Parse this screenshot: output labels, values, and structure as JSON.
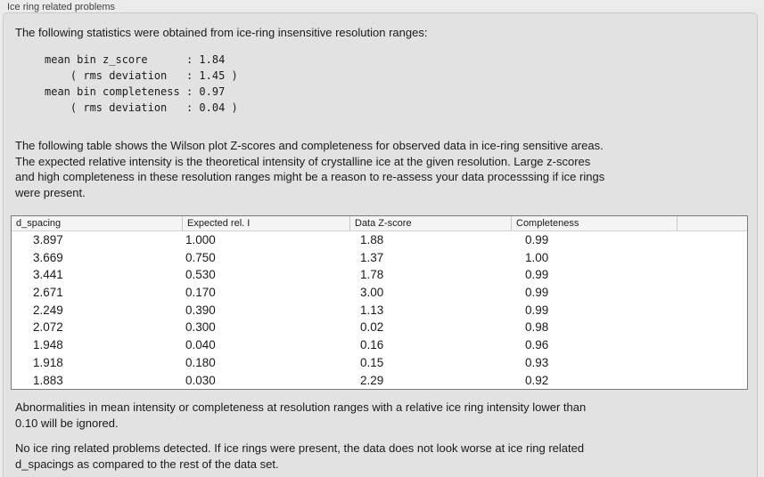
{
  "panel": {
    "title": "Ice ring related problems"
  },
  "stats": {
    "intro": "The following statistics were obtained from ice-ring insensitive resolution ranges:",
    "lines": [
      "mean bin z_score      : 1.84",
      "    ( rms deviation   : 1.45 )",
      "mean bin completeness : 0.97",
      "    ( rms deviation   : 0.04 )"
    ]
  },
  "table_intro": {
    "lines": [
      "The following table shows the Wilson plot Z-scores and completeness for observed data in ice-ring sensitive areas.",
      "The expected relative intensity is the theoretical intensity of crystalline ice at the given resolution. Large z-scores",
      "and high completeness in these resolution ranges might be a reason to re-assess your data processsing if ice rings",
      "were present."
    ]
  },
  "table": {
    "columns": [
      "d_spacing",
      "Expected rel. I",
      "Data Z-score",
      "Completeness",
      ""
    ],
    "rows": [
      [
        "3.897",
        "1.000",
        "1.88",
        "0.99"
      ],
      [
        "3.669",
        "0.750",
        "1.37",
        "1.00"
      ],
      [
        "3.441",
        "0.530",
        "1.78",
        "0.99"
      ],
      [
        "2.671",
        "0.170",
        "3.00",
        "0.99"
      ],
      [
        "2.249",
        "0.390",
        "1.13",
        "0.99"
      ],
      [
        "2.072",
        "0.300",
        "0.02",
        "0.98"
      ],
      [
        "1.948",
        "0.040",
        "0.16",
        "0.96"
      ],
      [
        "1.918",
        "0.180",
        "0.15",
        "0.93"
      ],
      [
        "1.883",
        "0.030",
        "2.29",
        "0.92"
      ]
    ]
  },
  "notes": {
    "ignore_lines": [
      "Abnormalities in mean intensity or completeness at resolution ranges with a relative ice ring intensity lower than",
      "0.10 will be ignored."
    ],
    "conclusion_lines": [
      "No ice ring related problems detected. If ice rings were present, the data does not look worse at ice ring related",
      "d_spacings as compared to the rest of the data set."
    ]
  },
  "colors": {
    "page_bg": "#ebebeb",
    "box_bg": "#e2e2e2",
    "box_border": "#c9c9c9",
    "table_border": "#7a7a7a",
    "table_header_bg": "#f4f4f4",
    "table_body_bg": "#ffffff",
    "text": "#1a1a1a"
  }
}
